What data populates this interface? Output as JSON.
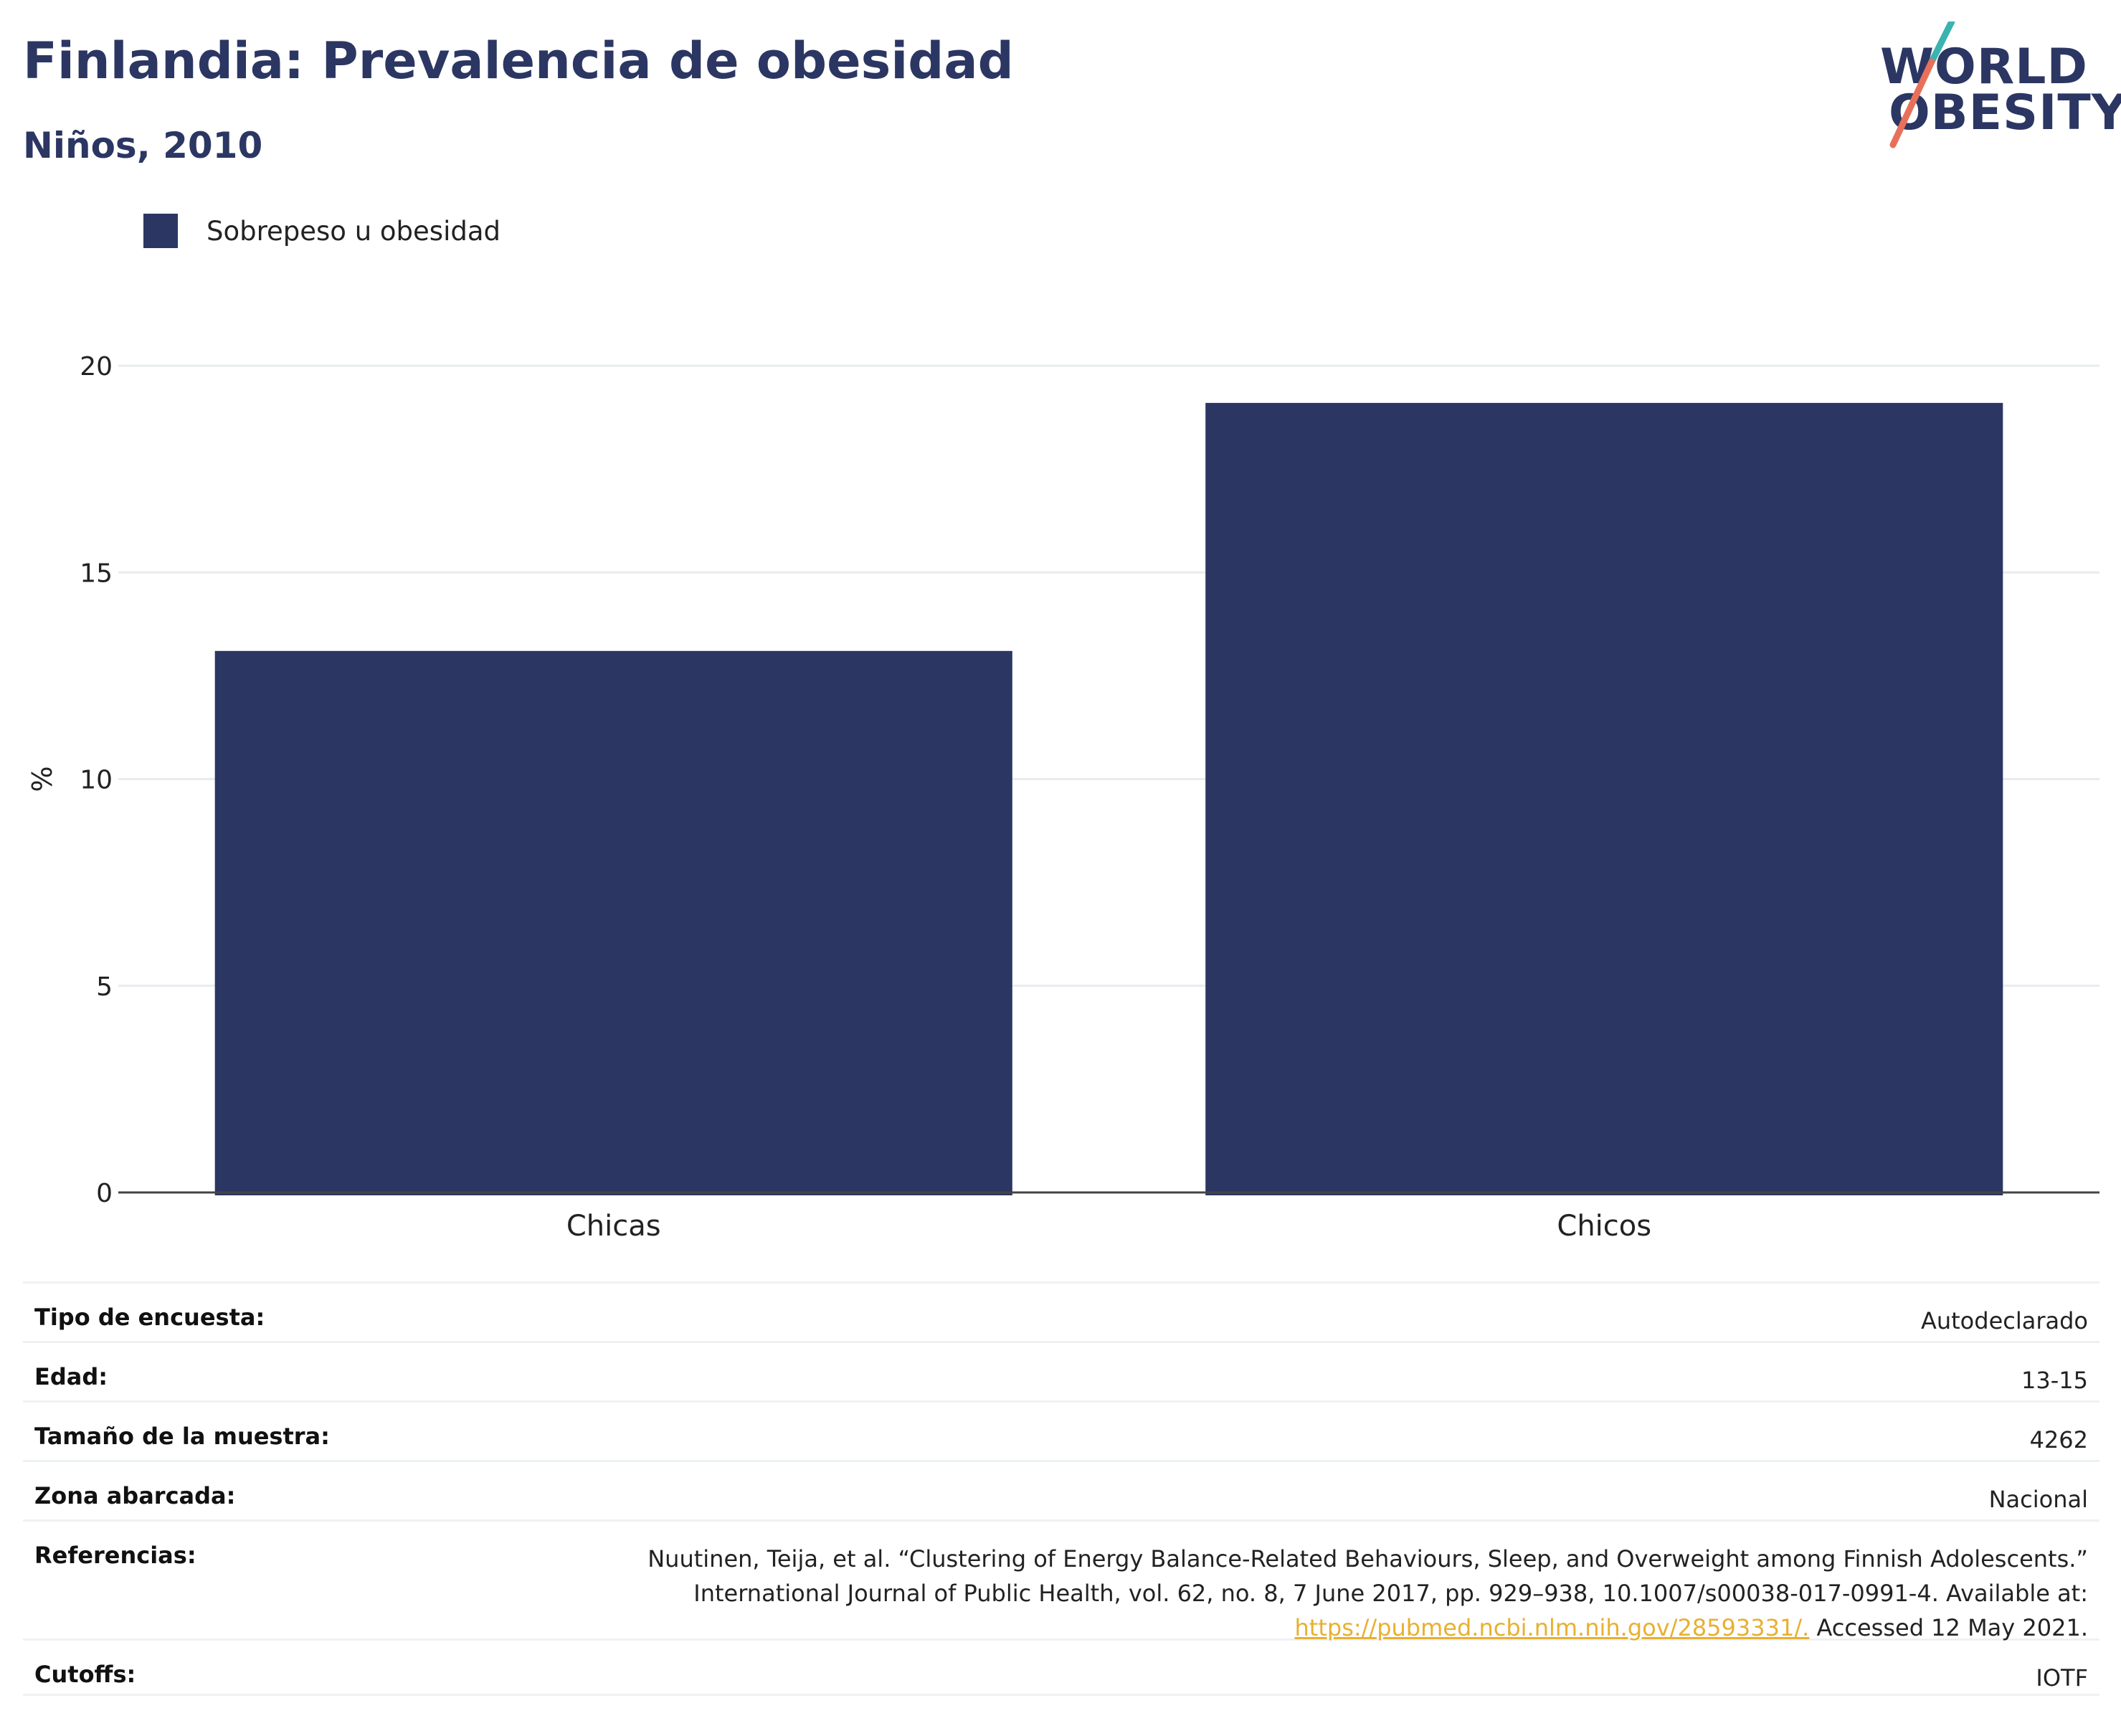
{
  "header": {
    "title": "Finlandia: Prevalencia de obesidad",
    "subtitle": "Niños, 2010"
  },
  "logo": {
    "line1": "WORLD",
    "line2": "OBESITY",
    "accent_colors": [
      "#3bb3b0",
      "#e8705a"
    ]
  },
  "legend": {
    "label": "Sobrepeso u obesidad",
    "color": "#2b3663"
  },
  "chart_data": {
    "type": "bar",
    "categories": [
      "Chicas",
      "Chicos"
    ],
    "series": [
      {
        "name": "Sobrepeso u obesidad",
        "values": [
          13.1,
          19.1
        ],
        "color": "#2b3663"
      }
    ],
    "ylabel": "%",
    "ylim": [
      0,
      20
    ],
    "yticks": [
      0,
      5,
      10,
      15,
      20
    ],
    "grid": true,
    "legend_position": "top-left"
  },
  "info": [
    {
      "key": "Tipo de encuesta:",
      "value": "Autodeclarado"
    },
    {
      "key": "Edad:",
      "value": "13-15"
    },
    {
      "key": "Tamaño de la muestra:",
      "value": "4262"
    },
    {
      "key": "Zona abarcada:",
      "value": "Nacional"
    },
    {
      "key": "Referencias:",
      "value_line1": "Nuutinen, Teija, et al. “Clustering of Energy Balance-Related Behaviours, Sleep, and Overweight among Finnish Adolescents.”",
      "value_line2": "International Journal of Public Health, vol. 62, no. 8, 7 June 2017, pp. 929–938, 10.1007/s00038-017-0991-4. Available at:",
      "value_link": "https://pubmed.ncbi.nlm.nih.gov/28593331/.",
      "value_tail": " Accessed 12 May 2021."
    },
    {
      "key": "Cutoffs:",
      "value": "IOTF"
    }
  ]
}
